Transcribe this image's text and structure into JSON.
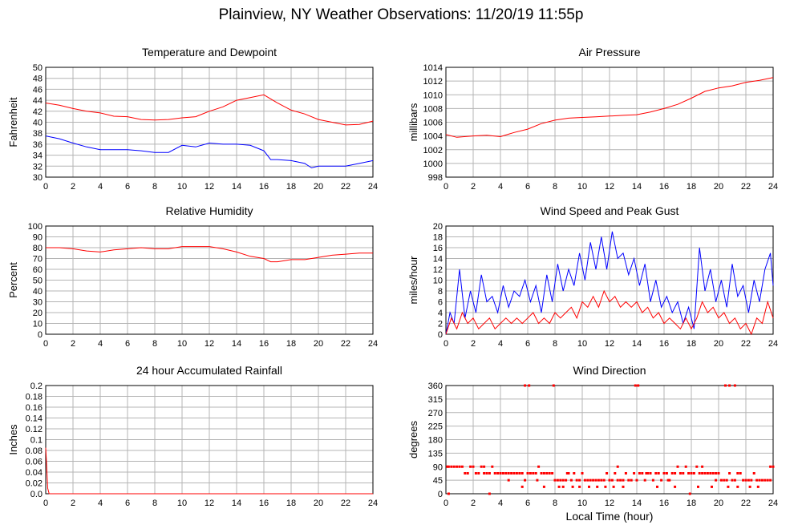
{
  "page": {
    "title": "Plainview, NY Weather Observations: 11/20/19 11:55p",
    "x_axis_label": "Local Time (hour)"
  },
  "chart_data": [
    {
      "id": "temp",
      "type": "line",
      "title": "Temperature and Dewpoint",
      "ylabel": "Fahrenheit",
      "xlim": [
        0,
        24
      ],
      "ylim": [
        30,
        50
      ],
      "xticks": [
        "0",
        "2",
        "4",
        "6",
        "8",
        "10",
        "12",
        "14",
        "16",
        "18",
        "20",
        "22",
        "24"
      ],
      "yticks": [
        "30",
        "32",
        "34",
        "36",
        "38",
        "40",
        "42",
        "44",
        "46",
        "48",
        "50"
      ],
      "series": [
        {
          "color": "#ff0000",
          "x": [
            0,
            1,
            2,
            3,
            4,
            5,
            6,
            7,
            8,
            9,
            10,
            11,
            12,
            13,
            14,
            15,
            16,
            17,
            18,
            19,
            20,
            21,
            22,
            23,
            24
          ],
          "values": [
            43.5,
            43.1,
            42.5,
            42.0,
            41.7,
            41.1,
            41.0,
            40.5,
            40.4,
            40.5,
            40.8,
            41.0,
            42.0,
            42.8,
            44.0,
            44.5,
            45.0,
            43.5,
            42.2,
            41.5,
            40.5,
            40.0,
            39.5,
            39.6,
            40.2
          ]
        },
        {
          "color": "#0000ff",
          "x": [
            0,
            1,
            2,
            3,
            4,
            5,
            6,
            7,
            8,
            9,
            10,
            11,
            12,
            13,
            14,
            15,
            16,
            16.5,
            17,
            18,
            19,
            19.5,
            20,
            21,
            22,
            23,
            24
          ],
          "values": [
            37.5,
            37.0,
            36.2,
            35.5,
            35.0,
            35.0,
            35.0,
            34.8,
            34.5,
            34.5,
            35.8,
            35.5,
            36.2,
            36.0,
            36.0,
            35.8,
            34.8,
            33.2,
            33.2,
            33.0,
            32.5,
            31.7,
            32.0,
            32.0,
            32.0,
            32.5,
            33.0
          ]
        }
      ]
    },
    {
      "id": "pressure",
      "type": "line",
      "title": "Air Pressure",
      "ylabel": "millibars",
      "xlim": [
        0,
        24
      ],
      "ylim": [
        998,
        1014
      ],
      "xticks": [
        "0",
        "2",
        "4",
        "6",
        "8",
        "10",
        "12",
        "14",
        "16",
        "18",
        "20",
        "22",
        "24"
      ],
      "yticks": [
        "998",
        "1000",
        "1002",
        "1004",
        "1006",
        "1008",
        "1010",
        "1012",
        "1014"
      ],
      "series": [
        {
          "color": "#ff0000",
          "x": [
            0,
            0.8,
            2,
            3,
            4,
            5,
            6,
            7,
            8,
            9,
            10,
            11,
            12,
            13,
            14,
            15,
            16,
            17,
            18,
            19,
            20,
            21,
            22,
            23,
            24
          ],
          "values": [
            1004.2,
            1003.8,
            1004.0,
            1004.1,
            1003.9,
            1004.5,
            1005.0,
            1005.8,
            1006.3,
            1006.6,
            1006.7,
            1006.8,
            1006.9,
            1007.0,
            1007.1,
            1007.5,
            1008.0,
            1008.6,
            1009.5,
            1010.5,
            1011.0,
            1011.3,
            1011.8,
            1012.1,
            1012.5
          ]
        }
      ]
    },
    {
      "id": "humidity",
      "type": "line",
      "title": "Relative Humidity",
      "ylabel": "Percent",
      "xlim": [
        0,
        24
      ],
      "ylim": [
        0,
        100
      ],
      "xticks": [
        "0",
        "2",
        "4",
        "6",
        "8",
        "10",
        "12",
        "14",
        "16",
        "18",
        "20",
        "22",
        "24"
      ],
      "yticks": [
        "0",
        "10",
        "20",
        "30",
        "40",
        "50",
        "60",
        "70",
        "80",
        "90",
        "100"
      ],
      "series": [
        {
          "color": "#ff0000",
          "x": [
            0,
            1,
            2,
            3,
            4,
            5,
            6,
            7,
            8,
            9,
            10,
            11,
            12,
            13,
            14,
            15,
            16,
            16.5,
            17,
            18,
            19,
            20,
            21,
            22,
            23,
            24
          ],
          "values": [
            80,
            80,
            79,
            77,
            76,
            78,
            79,
            80,
            79,
            79,
            81,
            81,
            81,
            79,
            76,
            72,
            70,
            67,
            67,
            69,
            69,
            71,
            73,
            74,
            75,
            75
          ]
        }
      ]
    },
    {
      "id": "wind",
      "type": "line",
      "title": "Wind Speed and Peak Gust",
      "ylabel": "miles/hour",
      "xlim": [
        0,
        24
      ],
      "ylim": [
        0,
        20
      ],
      "xticks": [
        "0",
        "2",
        "4",
        "6",
        "8",
        "10",
        "12",
        "14",
        "16",
        "18",
        "20",
        "22",
        "24"
      ],
      "yticks": [
        "0",
        "2",
        "4",
        "6",
        "8",
        "10",
        "12",
        "14",
        "16",
        "18",
        "20"
      ],
      "series": [
        {
          "color": "#0000ff",
          "x": [
            0,
            0.3,
            0.6,
            1,
            1.4,
            1.8,
            2.2,
            2.6,
            3,
            3.4,
            3.8,
            4.2,
            4.6,
            5,
            5.4,
            5.8,
            6.2,
            6.6,
            7,
            7.4,
            7.8,
            8.2,
            8.6,
            9,
            9.4,
            9.8,
            10.2,
            10.6,
            11,
            11.4,
            11.8,
            12.2,
            12.6,
            13,
            13.4,
            13.8,
            14.2,
            14.6,
            15,
            15.4,
            15.8,
            16.2,
            16.6,
            17,
            17.4,
            17.8,
            18.2,
            18.6,
            19,
            19.4,
            19.8,
            20.2,
            20.6,
            21,
            21.4,
            21.8,
            22.2,
            22.6,
            23,
            23.4,
            23.8,
            24
          ],
          "values": [
            0,
            4,
            2,
            12,
            3,
            8,
            4,
            11,
            6,
            7,
            4,
            9,
            5,
            8,
            7,
            10,
            6,
            9,
            4,
            11,
            6,
            13,
            8,
            12,
            9,
            15,
            10,
            17,
            12,
            18,
            12,
            19,
            14,
            15,
            11,
            14,
            9,
            13,
            6,
            10,
            5,
            7,
            4,
            6,
            2,
            5,
            1,
            16,
            8,
            12,
            6,
            10,
            5,
            13,
            7,
            9,
            4,
            10,
            6,
            12,
            15,
            9
          ]
        },
        {
          "color": "#ff0000",
          "x": [
            0,
            0.4,
            0.8,
            1.2,
            1.6,
            2,
            2.4,
            2.8,
            3.2,
            3.6,
            4,
            4.4,
            4.8,
            5.2,
            5.6,
            6,
            6.4,
            6.8,
            7.2,
            7.6,
            8,
            8.4,
            8.8,
            9.2,
            9.6,
            10,
            10.4,
            10.8,
            11.2,
            11.6,
            12,
            12.4,
            12.8,
            13.2,
            13.6,
            14,
            14.4,
            14.8,
            15.2,
            15.6,
            16,
            16.4,
            16.8,
            17.2,
            17.6,
            18,
            18.4,
            18.8,
            19.2,
            19.6,
            20,
            20.4,
            20.8,
            21.2,
            21.6,
            22,
            22.4,
            22.8,
            23.2,
            23.6,
            24
          ],
          "values": [
            0,
            3,
            1,
            4,
            2,
            3,
            1,
            2,
            3,
            1,
            2,
            3,
            2,
            3,
            2,
            3,
            4,
            2,
            3,
            2,
            4,
            3,
            4,
            5,
            3,
            6,
            5,
            7,
            5,
            8,
            6,
            7,
            5,
            6,
            5,
            6,
            4,
            5,
            3,
            4,
            2,
            3,
            2,
            1,
            3,
            1,
            3,
            6,
            4,
            5,
            3,
            4,
            2,
            3,
            1,
            2,
            0,
            3,
            2,
            6,
            3
          ]
        }
      ]
    },
    {
      "id": "rain",
      "type": "line",
      "title": "24 hour Accumulated Rainfall",
      "ylabel": "Inches",
      "xlim": [
        0,
        24
      ],
      "ylim": [
        0,
        0.2
      ],
      "xticks": [
        "0",
        "2",
        "4",
        "6",
        "8",
        "10",
        "12",
        "14",
        "16",
        "18",
        "20",
        "22",
        "24"
      ],
      "yticks": [
        "0.0",
        "0.02",
        "0.04",
        "0.06",
        "0.08",
        "0.1",
        "0.12",
        "0.14",
        "0.16",
        "0.18",
        "0.2"
      ],
      "series": [
        {
          "color": "#ff0000",
          "x": [
            0,
            0.05,
            0.15,
            0.25,
            24
          ],
          "values": [
            0.085,
            0.06,
            0.01,
            0.0,
            0.0
          ]
        }
      ]
    },
    {
      "id": "dir",
      "type": "scatter",
      "title": "Wind Direction",
      "ylabel": "degrees",
      "xlim": [
        0,
        24
      ],
      "ylim": [
        0,
        360
      ],
      "xticks": [
        "0",
        "2",
        "4",
        "6",
        "8",
        "10",
        "12",
        "14",
        "16",
        "18",
        "20",
        "22",
        "24"
      ],
      "yticks": [
        "0",
        "45",
        "90",
        "135",
        "180",
        "225",
        "270",
        "315",
        "360"
      ],
      "series": [
        {
          "color": "#ff0000",
          "x": [
            0.1,
            0.2,
            0.4,
            0.6,
            0.8,
            1.0,
            1.2,
            1.4,
            1.6,
            1.8,
            2.0,
            2.2,
            2.4,
            2.6,
            2.8,
            3.0,
            3.2,
            3.4,
            3.6,
            3.8,
            4.0,
            4.2,
            4.4,
            4.6,
            4.8,
            5.0,
            5.2,
            5.4,
            5.6,
            5.8,
            6.0,
            6.2,
            6.4,
            6.6,
            6.8,
            7.0,
            7.2,
            7.4,
            7.6,
            7.8,
            8.0,
            8.2,
            8.4,
            8.6,
            8.8,
            9.0,
            9.2,
            9.4,
            9.6,
            9.8,
            10.0,
            10.2,
            10.4,
            10.6,
            10.8,
            11.0,
            11.2,
            11.4,
            11.6,
            11.8,
            12.0,
            12.2,
            12.4,
            12.6,
            12.8,
            13.0,
            13.2,
            13.4,
            13.6,
            13.8,
            14.0,
            14.2,
            14.4,
            14.6,
            14.8,
            15.0,
            15.2,
            15.4,
            15.6,
            15.8,
            16.0,
            16.2,
            16.4,
            16.6,
            16.8,
            17.0,
            17.2,
            17.4,
            17.6,
            17.8,
            18.0,
            18.2,
            18.4,
            18.6,
            18.8,
            19.0,
            19.2,
            19.4,
            19.6,
            19.8,
            20.0,
            20.2,
            20.4,
            20.6,
            20.8,
            21.0,
            21.2,
            21.4,
            21.6,
            21.8,
            22.0,
            22.2,
            22.4,
            22.6,
            22.8,
            23.0,
            23.2,
            23.4,
            23.6,
            23.8,
            24.0,
            5.8,
            6.1,
            7.9,
            13.9,
            14.1,
            20.5,
            20.8,
            21.2,
            3.2,
            17.9,
            0.2,
            5.6,
            7.2,
            8.3,
            8.6,
            9.3,
            9.8,
            10.5,
            11.1,
            11.7,
            12.3,
            13.0,
            15.5,
            16.8,
            18.5,
            19.5,
            20.7,
            21.4,
            22.3,
            22.9,
            2.8,
            4.6,
            6.7,
            8.9,
            12.6,
            14.7,
            16.3,
            18.8,
            19.8,
            23.8
          ],
          "values": [
            90,
            90,
            90,
            90,
            90,
            90,
            90,
            68,
            68,
            90,
            90,
            68,
            68,
            90,
            90,
            68,
            68,
            90,
            68,
            68,
            68,
            68,
            68,
            68,
            68,
            68,
            68,
            68,
            68,
            45,
            68,
            68,
            68,
            68,
            90,
            68,
            68,
            68,
            68,
            68,
            45,
            45,
            45,
            45,
            45,
            68,
            45,
            68,
            45,
            45,
            68,
            45,
            45,
            45,
            45,
            45,
            45,
            45,
            45,
            68,
            45,
            45,
            68,
            45,
            45,
            45,
            68,
            45,
            45,
            68,
            45,
            68,
            68,
            45,
            68,
            68,
            45,
            68,
            68,
            45,
            68,
            68,
            45,
            68,
            68,
            90,
            68,
            68,
            90,
            68,
            68,
            68,
            90,
            68,
            68,
            68,
            68,
            68,
            68,
            45,
            68,
            45,
            45,
            45,
            68,
            45,
            45,
            68,
            68,
            45,
            45,
            45,
            45,
            68,
            45,
            45,
            45,
            45,
            45,
            45,
            90,
            360,
            360,
            360,
            360,
            360,
            360,
            360,
            360,
            0,
            0,
            0,
            23,
            23,
            23,
            23,
            23,
            23,
            23,
            23,
            23,
            23,
            23,
            23,
            23,
            23,
            23,
            23,
            23,
            23,
            23,
            68,
            45,
            45,
            68,
            90,
            68,
            45,
            90,
            68,
            90
          ]
        }
      ]
    }
  ]
}
